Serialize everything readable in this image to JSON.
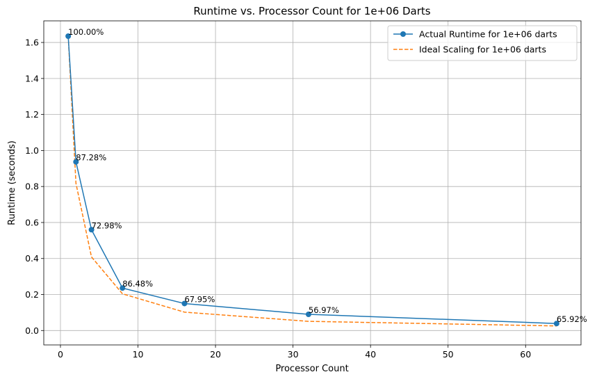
{
  "chart_data": {
    "type": "line",
    "title": "Runtime vs. Processor Count for 1e+06 Darts",
    "xlabel": "Processor Count",
    "ylabel": "Runtime (seconds)",
    "xlim": [
      -2.15,
      67.15
    ],
    "ylim": [
      -0.08,
      1.72
    ],
    "xticks": [
      0,
      10,
      20,
      30,
      40,
      50,
      60
    ],
    "xtick_labels": [
      "0",
      "10",
      "20",
      "30",
      "40",
      "50",
      "60"
    ],
    "yticks": [
      0.0,
      0.2,
      0.4,
      0.6,
      0.8,
      1.0,
      1.2,
      1.4,
      1.6
    ],
    "ytick_labels": [
      "0.0",
      "0.2",
      "0.4",
      "0.6",
      "0.8",
      "1.0",
      "1.2",
      "1.4",
      "1.6"
    ],
    "grid": true,
    "legend_position": "top-right",
    "x": [
      1,
      2,
      4,
      8,
      16,
      32,
      64
    ],
    "series": [
      {
        "name": "Actual Runtime for 1e+06 darts",
        "values": [
          1.635,
          0.937,
          0.56,
          0.236,
          0.15,
          0.09,
          0.039
        ],
        "color": "#1f77b4",
        "style": "solid",
        "marker": "circle"
      },
      {
        "name": "Ideal Scaling for 1e+06 darts",
        "values": [
          1.635,
          0.8175,
          0.409,
          0.204,
          0.102,
          0.051,
          0.0255
        ],
        "color": "#ff7f0e",
        "style": "dashed",
        "marker": "none"
      }
    ],
    "annotations": [
      "100.00%",
      "87.28%",
      "72.98%",
      "86.48%",
      "67.95%",
      "56.97%",
      "65.92%"
    ]
  }
}
